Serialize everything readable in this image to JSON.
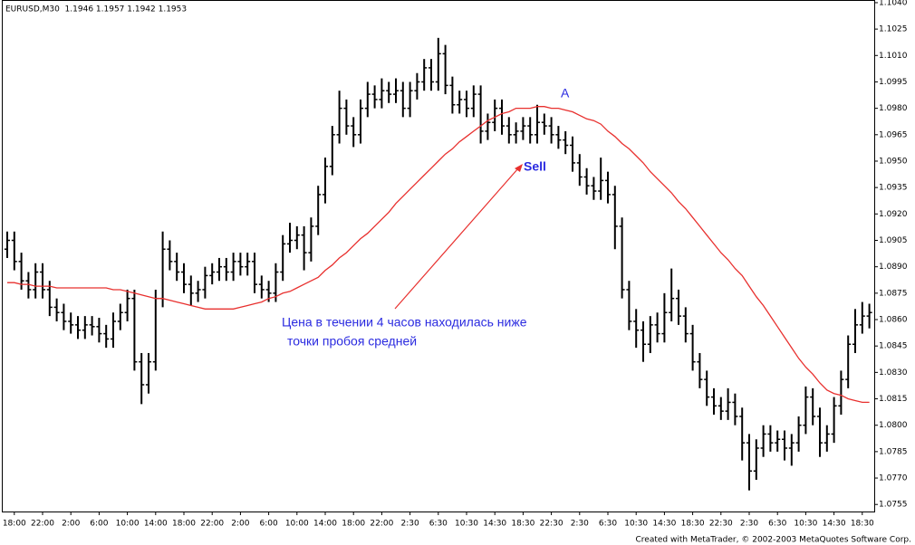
{
  "chart_data": {
    "type": "ohlc",
    "header": "EURUSD,M30  1.1946 1.1957 1.1942 1.1953",
    "footer": "Created with MetaTrader, © 2002-2003 MetaQuotes Software Corp.",
    "annotations": [
      "A",
      "Sell",
      "Цена в течении 4 часов находилась ниже",
      "точки пробоя средней"
    ],
    "bar_color": "#000000",
    "categories": [
      null,
      "18:00",
      null,
      null,
      null,
      "22:00",
      null,
      null,
      null,
      "2:00",
      null,
      null,
      null,
      "6:00",
      null,
      null,
      null,
      "10:00",
      null,
      null,
      null,
      "14:00",
      null,
      null,
      null,
      "18:00",
      null,
      null,
      null,
      "22:00",
      null,
      null,
      null,
      "2:00",
      null,
      null,
      null,
      "6:00",
      null,
      null,
      null,
      "10:00",
      null,
      null,
      null,
      "14:00",
      null,
      null,
      null,
      "18:00",
      null,
      null,
      null,
      "22:00",
      null,
      null,
      null,
      "2:30",
      null,
      null,
      null,
      "6:30",
      null,
      null,
      null,
      "10:30",
      null,
      null,
      null,
      "14:30",
      null,
      null,
      null,
      "18:30",
      null,
      null,
      null,
      "22:30",
      null,
      null,
      null,
      "2:30",
      null,
      null,
      null,
      "6:30",
      null,
      null,
      null,
      "10:30",
      null,
      null,
      null,
      "14:30",
      null,
      null,
      null,
      "18:30",
      null,
      null,
      null,
      "22:30",
      null,
      null,
      null,
      "2:30",
      null,
      null,
      null,
      "6:30",
      null,
      null,
      null,
      "10:30",
      null,
      null,
      null,
      "14:30",
      null,
      null,
      null,
      "18:30",
      null
    ],
    "open": [
      1.09,
      1.0905,
      1.0893,
      1.0882,
      1.0877,
      1.0887,
      1.0877,
      1.0867,
      1.0864,
      1.0859,
      1.0857,
      1.0854,
      1.0857,
      1.0856,
      1.0852,
      1.0849,
      1.0859,
      1.0864,
      1.0872,
      1.0836,
      1.0823,
      1.0836,
      1.0872,
      1.09,
      1.0893,
      1.0887,
      1.088,
      1.0875,
      1.0877,
      1.0885,
      1.0887,
      1.089,
      1.0887,
      1.0893,
      1.089,
      1.0893,
      1.088,
      1.0877,
      1.0875,
      1.0887,
      1.0903,
      1.0905,
      1.0908,
      1.0898,
      1.0913,
      1.0931,
      1.0947,
      1.0965,
      1.098,
      1.097,
      1.0965,
      1.098,
      1.0988,
      1.0985,
      1.099,
      1.0988,
      1.099,
      1.098,
      1.099,
      1.0995,
      1.1003,
      1.0995,
      1.1011,
      1.0993,
      1.0982,
      1.0985,
      1.098,
      1.0988,
      1.0967,
      1.0972,
      1.098,
      1.097,
      1.0965,
      1.0967,
      1.097,
      1.0965,
      1.0972,
      1.097,
      1.0965,
      1.0962,
      1.0959,
      1.0949,
      1.0941,
      1.0936,
      1.0933,
      1.0939,
      1.0931,
      1.0913,
      1.0877,
      1.0859,
      1.0854,
      1.0846,
      1.0857,
      1.0852,
      1.0864,
      1.0872,
      1.0862,
      1.0852,
      1.0836,
      1.0826,
      1.0816,
      1.0811,
      1.0808,
      1.0813,
      1.0805,
      1.079,
      1.0774,
      1.0787,
      1.0795,
      1.079,
      1.0792,
      1.0787,
      1.079,
      1.08,
      1.0816,
      1.0805,
      1.079,
      1.0795,
      1.0811,
      1.0826,
      1.0846,
      1.0857,
      1.0862
    ],
    "high": [
      1.091,
      1.091,
      1.0898,
      1.0887,
      1.0892,
      1.0892,
      1.0882,
      1.0872,
      1.0869,
      1.0864,
      1.0862,
      1.0862,
      1.0862,
      1.0861,
      1.0857,
      1.0864,
      1.0869,
      1.0877,
      1.0877,
      1.0841,
      1.0841,
      1.0877,
      1.091,
      1.0905,
      1.0898,
      1.0892,
      1.0885,
      1.0882,
      1.089,
      1.0892,
      1.0895,
      1.0895,
      1.0898,
      1.0898,
      1.0898,
      1.0898,
      1.0885,
      1.0882,
      1.0892,
      1.0908,
      1.0915,
      1.0913,
      1.0913,
      1.0918,
      1.0936,
      1.0952,
      1.097,
      1.099,
      1.0985,
      1.0975,
      1.0985,
      1.0995,
      1.0993,
      1.0997,
      1.0995,
      1.0997,
      1.0995,
      1.0995,
      1.1,
      1.1008,
      1.1008,
      1.102,
      1.1016,
      1.0998,
      1.099,
      1.099,
      1.0993,
      1.0993,
      1.0977,
      1.0985,
      1.0985,
      1.0975,
      1.0972,
      1.0975,
      1.0975,
      1.0982,
      1.0977,
      1.0975,
      1.097,
      1.0967,
      1.0964,
      1.0954,
      1.0946,
      1.0941,
      1.0952,
      1.0944,
      1.0936,
      1.0918,
      1.0882,
      1.0866,
      1.0859,
      1.0862,
      1.0864,
      1.0875,
      1.0889,
      1.0877,
      1.0867,
      1.0857,
      1.0841,
      1.0831,
      1.0821,
      1.0816,
      1.0821,
      1.0818,
      1.081,
      1.0795,
      1.0792,
      1.08,
      1.08,
      1.0797,
      1.0797,
      1.0795,
      1.0805,
      1.0822,
      1.0821,
      1.081,
      1.08,
      1.0816,
      1.0831,
      1.0851,
      1.0866,
      1.087,
      1.0869
    ],
    "low": [
      1.0895,
      1.0888,
      1.0877,
      1.0872,
      1.0872,
      1.0872,
      1.0862,
      1.0859,
      1.0854,
      1.0852,
      1.0849,
      1.0849,
      1.0851,
      1.0847,
      1.0844,
      1.0844,
      1.0854,
      1.0859,
      1.0831,
      1.0812,
      1.0818,
      1.0831,
      1.0867,
      1.0888,
      1.0882,
      1.0875,
      1.0868,
      1.087,
      1.0872,
      1.088,
      1.0882,
      1.0882,
      1.0882,
      1.0885,
      1.0885,
      1.0875,
      1.0872,
      1.087,
      1.087,
      1.0882,
      1.0898,
      1.09,
      1.0888,
      1.0893,
      1.0908,
      1.0926,
      1.0942,
      1.096,
      1.0965,
      1.0958,
      1.096,
      1.0975,
      1.098,
      1.098,
      1.0983,
      1.0983,
      1.0975,
      1.0975,
      1.0985,
      1.099,
      1.099,
      1.099,
      1.0988,
      1.0977,
      1.0977,
      1.0975,
      1.0975,
      1.096,
      1.0962,
      1.0967,
      1.0965,
      1.096,
      1.096,
      1.0962,
      1.096,
      1.096,
      1.0965,
      1.096,
      1.0957,
      1.0954,
      1.0944,
      1.0936,
      1.0931,
      1.0928,
      1.0928,
      1.0926,
      1.09,
      1.0872,
      1.0854,
      1.0844,
      1.0836,
      1.0841,
      1.0847,
      1.0847,
      1.0859,
      1.0857,
      1.0847,
      1.0831,
      1.0821,
      1.0811,
      1.0806,
      1.0803,
      1.0803,
      1.08,
      1.078,
      1.0763,
      1.0769,
      1.0782,
      1.0785,
      1.0785,
      1.078,
      1.0777,
      1.0785,
      1.0795,
      1.08,
      1.0782,
      1.0785,
      1.079,
      1.0806,
      1.0821,
      1.0841,
      1.0852,
      1.0855
    ],
    "close": [
      1.0905,
      1.0893,
      1.0882,
      1.0877,
      1.0887,
      1.0877,
      1.0867,
      1.0864,
      1.0859,
      1.0857,
      1.0854,
      1.0857,
      1.0856,
      1.0852,
      1.0849,
      1.0859,
      1.0864,
      1.0872,
      1.0836,
      1.0823,
      1.0836,
      1.0872,
      1.09,
      1.0893,
      1.0887,
      1.088,
      1.0875,
      1.0877,
      1.0885,
      1.0887,
      1.089,
      1.0887,
      1.0893,
      1.089,
      1.0893,
      1.088,
      1.0877,
      1.0875,
      1.0887,
      1.0903,
      1.0905,
      1.0908,
      1.0898,
      1.0913,
      1.0931,
      1.0947,
      1.0965,
      1.098,
      1.097,
      1.0965,
      1.098,
      1.0988,
      1.0985,
      1.099,
      1.0988,
      1.099,
      1.098,
      1.099,
      1.0995,
      1.1003,
      1.0995,
      1.1011,
      1.0993,
      1.0982,
      1.0985,
      1.098,
      1.0988,
      1.0967,
      1.0972,
      1.098,
      1.097,
      1.0965,
      1.0967,
      1.097,
      1.0965,
      1.0972,
      1.097,
      1.0965,
      1.0962,
      1.0959,
      1.0949,
      1.0941,
      1.0936,
      1.0933,
      1.0939,
      1.0931,
      1.0913,
      1.0877,
      1.0859,
      1.0854,
      1.0846,
      1.0857,
      1.0852,
      1.0864,
      1.0872,
      1.0862,
      1.0852,
      1.0836,
      1.0826,
      1.0816,
      1.0811,
      1.0808,
      1.0813,
      1.0805,
      1.079,
      1.0774,
      1.0787,
      1.0795,
      1.079,
      1.0792,
      1.0787,
      1.079,
      1.08,
      1.0816,
      1.0805,
      1.079,
      1.0795,
      1.0811,
      1.0826,
      1.0846,
      1.0857,
      1.0862,
      1.0864
    ],
    "moving_average": {
      "color": "#e8302e",
      "values": [
        1.0881,
        1.0881,
        1.088,
        1.088,
        1.0879,
        1.0879,
        1.0879,
        1.0878,
        1.0878,
        1.0878,
        1.0878,
        1.0878,
        1.0878,
        1.0878,
        1.0878,
        1.0877,
        1.0877,
        1.0876,
        1.0875,
        1.0874,
        1.0873,
        1.0872,
        1.0872,
        1.0871,
        1.087,
        1.0869,
        1.0868,
        1.0867,
        1.0866,
        1.0866,
        1.0866,
        1.0866,
        1.0866,
        1.0867,
        1.0868,
        1.0869,
        1.087,
        1.0872,
        1.0873,
        1.0875,
        1.0876,
        1.0878,
        1.088,
        1.0882,
        1.0884,
        1.0888,
        1.0891,
        1.0895,
        1.0898,
        1.0902,
        1.0906,
        1.0909,
        1.0913,
        1.0917,
        1.0921,
        1.0926,
        1.093,
        1.0934,
        1.0938,
        1.0942,
        1.0946,
        1.095,
        1.0954,
        1.0957,
        1.0961,
        1.0964,
        1.0967,
        1.097,
        1.0973,
        1.0975,
        1.0977,
        1.0978,
        1.098,
        1.098,
        1.098,
        1.0981,
        1.0981,
        1.098,
        1.098,
        1.0979,
        1.0978,
        1.0976,
        1.0974,
        1.0973,
        1.0971,
        1.0967,
        1.0964,
        1.096,
        1.0957,
        1.0953,
        1.0949,
        1.0944,
        1.094,
        1.0936,
        1.0932,
        1.0927,
        1.0923,
        1.0918,
        1.0913,
        1.0908,
        1.0903,
        1.0898,
        1.0894,
        1.0889,
        1.0885,
        1.0879,
        1.0873,
        1.0868,
        1.0862,
        1.0856,
        1.085,
        1.0844,
        1.0838,
        1.0833,
        1.0829,
        1.0824,
        1.082,
        1.0818,
        1.0817,
        1.0815,
        1.0814,
        1.0813,
        1.0813
      ]
    },
    "ylim": [
      1.0751,
      1.1041
    ],
    "yticks": [
      {
        "value": 1.104,
        "label": "1.1040"
      },
      1.1025,
      {
        "value": 1.101,
        "label": "1.1010"
      },
      1.0995,
      {
        "value": 1.098,
        "label": "1.0980"
      },
      1.0965,
      {
        "value": 1.095,
        "label": "1.0950"
      },
      1.0935,
      {
        "value": 1.092,
        "label": "1.0920"
      },
      1.0905,
      {
        "value": 1.089,
        "label": "1.0890"
      },
      1.0875,
      {
        "value": 1.086,
        "label": "1.0860"
      },
      1.0845,
      {
        "value": 1.083,
        "label": "1.0830"
      },
      1.0815,
      {
        "value": 1.08,
        "label": "1.0800"
      },
      1.0785,
      {
        "value": 1.077,
        "label": "1.0770"
      },
      1.0755
    ],
    "grid": false
  }
}
